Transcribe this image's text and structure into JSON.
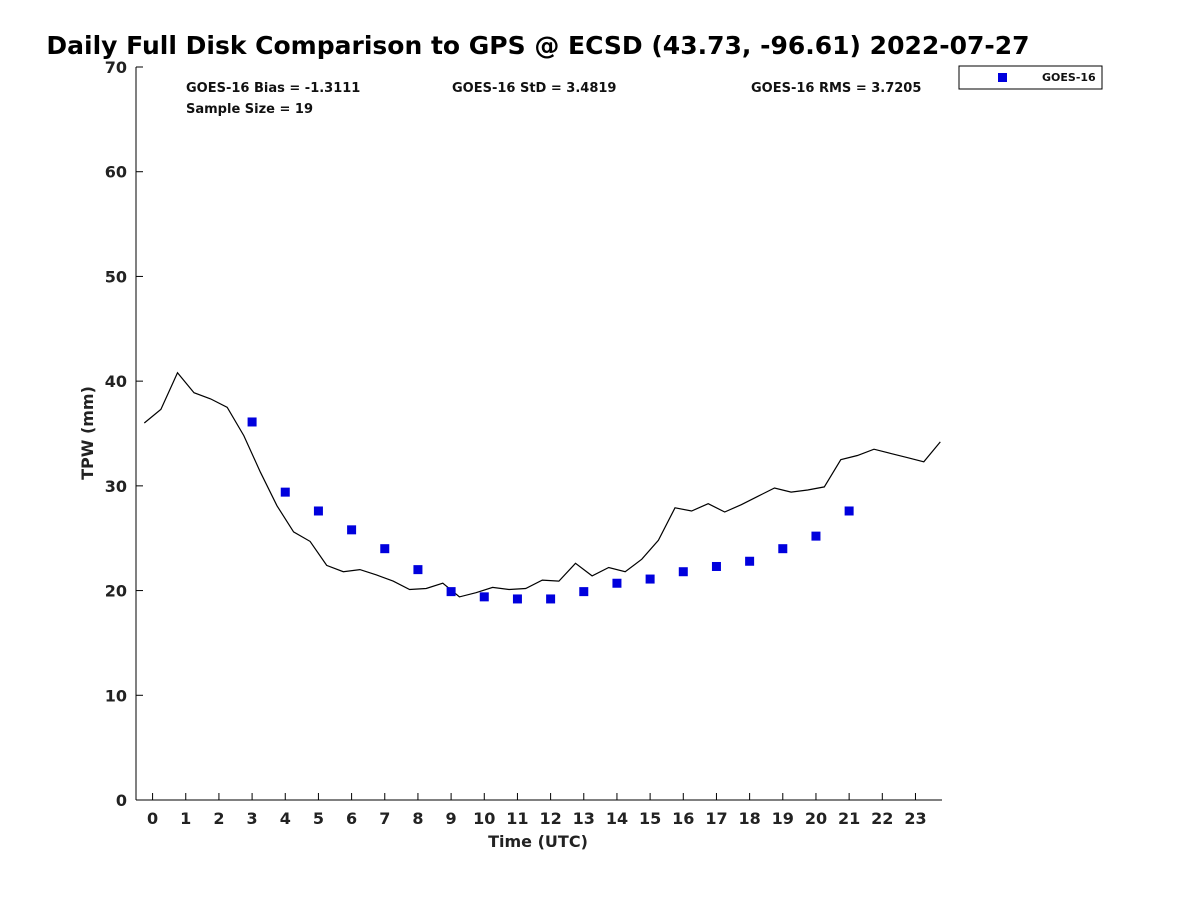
{
  "chart_data": {
    "type": "line",
    "title": "Daily Full Disk Comparison to GPS @ ECSD (43.73, -96.61) 2022-07-27",
    "xlabel": "Time (UTC)",
    "ylabel": "TPW (mm)",
    "xlim": [
      -0.5,
      23.8
    ],
    "ylim": [
      0,
      70
    ],
    "xticks": [
      0,
      1,
      2,
      3,
      4,
      5,
      6,
      7,
      8,
      9,
      10,
      11,
      12,
      13,
      14,
      15,
      16,
      17,
      18,
      19,
      20,
      21,
      22,
      23
    ],
    "yticks": [
      0,
      10,
      20,
      30,
      40,
      50,
      60,
      70
    ],
    "grid": false,
    "legend_position": "top-right",
    "annotations": {
      "bias": "GOES-16 Bias = -1.3111",
      "std": "GOES-16 StD = 3.4819",
      "rms": "GOES-16 RMS = 3.7205",
      "sample_size": "Sample Size = 19"
    },
    "series": [
      {
        "style": "line",
        "color": "#000000",
        "x": [
          -0.25,
          0.25,
          0.75,
          1.25,
          1.75,
          2.25,
          2.75,
          3.25,
          3.75,
          4.25,
          4.75,
          5.25,
          5.75,
          6.25,
          6.75,
          7.25,
          7.75,
          8.25,
          8.75,
          9.25,
          9.75,
          10.25,
          10.75,
          11.25,
          11.75,
          12.25,
          12.75,
          13.25,
          13.75,
          14.25,
          14.75,
          15.25,
          15.75,
          16.25,
          16.75,
          17.25,
          17.75,
          18.25,
          18.75,
          19.25,
          19.75,
          20.25,
          20.75,
          21.25,
          21.75,
          22.25,
          22.75,
          23.25,
          23.75
        ],
        "y": [
          36.0,
          37.3,
          40.8,
          38.9,
          38.3,
          37.5,
          34.8,
          31.3,
          28.1,
          25.6,
          24.7,
          22.4,
          21.8,
          22.0,
          21.5,
          20.9,
          20.1,
          20.2,
          20.7,
          19.4,
          19.8,
          20.3,
          20.1,
          20.2,
          21.0,
          20.9,
          22.6,
          21.4,
          22.2,
          21.8,
          23.0,
          24.8,
          27.9,
          27.6,
          28.3,
          27.5,
          28.2,
          29.0,
          29.8,
          29.4,
          29.6,
          29.9,
          32.5,
          32.9,
          33.5,
          33.1,
          32.7,
          32.3,
          34.2
        ]
      },
      {
        "name": "GOES-16",
        "style": "markers",
        "color": "#0000dd",
        "x": [
          3,
          4,
          5,
          6,
          7,
          8,
          9,
          10,
          11,
          12,
          13,
          14,
          15,
          16,
          17,
          18,
          19,
          20,
          21
        ],
        "y": [
          36.1,
          29.4,
          27.6,
          25.8,
          24.0,
          22.0,
          19.9,
          19.4,
          19.2,
          19.2,
          19.9,
          20.7,
          21.1,
          21.8,
          22.3,
          22.8,
          24.0,
          25.2,
          27.6
        ]
      }
    ]
  }
}
